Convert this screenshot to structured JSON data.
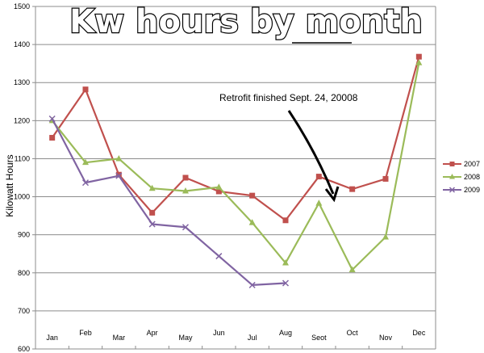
{
  "chart_data": {
    "type": "line",
    "title": "Kw hours by month",
    "xlabel": "",
    "ylabel": "Kilowatt Hours",
    "categories": [
      "Jan",
      "Feb",
      "Mar",
      "Apr",
      "May",
      "Jun",
      "Jul",
      "Aug",
      "Seot",
      "Oct",
      "Nov",
      "Dec"
    ],
    "ylim": [
      600,
      1500
    ],
    "yticks": [
      600,
      700,
      800,
      900,
      1000,
      1100,
      1200,
      1300,
      1400,
      1500
    ],
    "grid": true,
    "legend_position": "right",
    "series": [
      {
        "name": "2007",
        "color": "#c0504d",
        "marker": "square",
        "values": [
          1155,
          1282,
          1058,
          958,
          1050,
          1014,
          1003,
          938,
          1053,
          1020,
          1047,
          1368
        ]
      },
      {
        "name": "2008",
        "color": "#9bbb59",
        "marker": "triangle",
        "values": [
          1200,
          1090,
          1100,
          1022,
          1015,
          1025,
          932,
          826,
          983,
          808,
          894,
          1352
        ]
      },
      {
        "name": "2009",
        "color": "#8064a2",
        "marker": "x",
        "values": [
          1205,
          1037,
          1055,
          928,
          920,
          844,
          768,
          773,
          null,
          null,
          null,
          null
        ]
      }
    ],
    "annotation": {
      "text": "Retrofit finished Sept. 24, 20008"
    }
  }
}
